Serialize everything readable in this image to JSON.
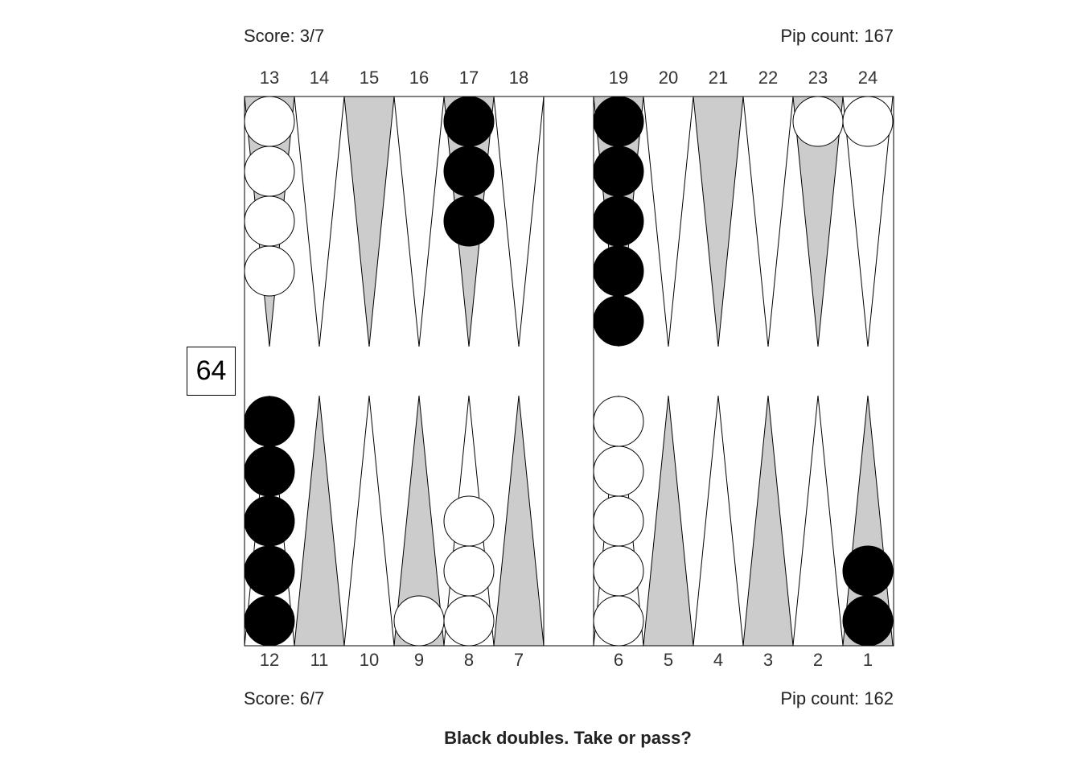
{
  "top": {
    "score": "Score: 3/7",
    "pip_count": "Pip count: 167"
  },
  "bottom": {
    "score": "Score: 6/7",
    "pip_count": "Pip count: 162"
  },
  "question": "Black doubles. Take or pass?",
  "cube_value": "64",
  "top_point_labels": [
    "13",
    "14",
    "15",
    "16",
    "17",
    "18",
    "19",
    "20",
    "21",
    "22",
    "23",
    "24"
  ],
  "bottom_point_labels": [
    "12",
    "11",
    "10",
    "9",
    "8",
    "7",
    "6",
    "5",
    "4",
    "3",
    "2",
    "1"
  ],
  "colors": {
    "dark_triangle": "#cccccc",
    "light_triangle": "#ffffff",
    "black_checker": "#000000",
    "white_checker": "#ffffff"
  },
  "checkers": [
    {
      "point": 13,
      "color": "white",
      "count": 4
    },
    {
      "point": 17,
      "color": "black",
      "count": 3
    },
    {
      "point": 19,
      "color": "black",
      "count": 5
    },
    {
      "point": 23,
      "color": "white",
      "count": 1
    },
    {
      "point": 24,
      "color": "white",
      "count": 1
    },
    {
      "point": 12,
      "color": "black",
      "count": 5
    },
    {
      "point": 9,
      "color": "white",
      "count": 1
    },
    {
      "point": 8,
      "color": "white",
      "count": 3
    },
    {
      "point": 6,
      "color": "white",
      "count": 5
    },
    {
      "point": 1,
      "color": "black",
      "count": 2
    }
  ]
}
